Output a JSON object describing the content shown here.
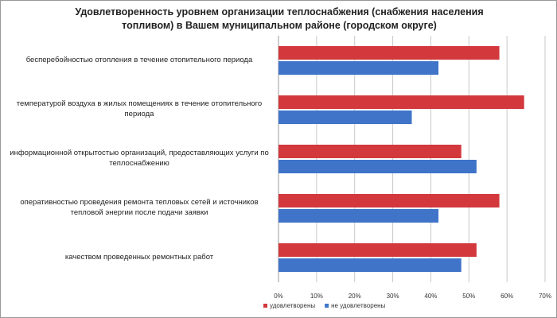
{
  "chart_data": {
    "type": "hbar",
    "title": "Удовлетворенность уровнем организации теплоснабжения (снабжения населения топливом) в Вашем муниципальном районе (городском округе)",
    "categories": [
      "бесперебойностью  отопления в течение отопительного периода",
      "температурой воздуха в жилых помещениях в течение отопительного периода",
      "информационной открытостью организаций, предоставляющих услуги по теплоснабжению",
      "оперативностью проведения ремонта тепловых сетей и источников тепловой энергии после подачи заявки",
      "качеством проведенных ремонтных работ"
    ],
    "series": [
      {
        "name": "удовлетворены",
        "color": "#d2383c",
        "values": [
          58,
          64.5,
          48,
          58,
          52
        ]
      },
      {
        "name": "не удовлетворены",
        "color": "#3f74c8",
        "values": [
          42,
          35,
          52,
          42,
          48
        ]
      }
    ],
    "xlim": [
      0,
      70
    ],
    "xticks": [
      {
        "value": 0,
        "label": "0%"
      },
      {
        "value": 10,
        "label": "10%"
      },
      {
        "value": 20,
        "label": "20%"
      },
      {
        "value": 30,
        "label": "30%"
      },
      {
        "value": 40,
        "label": "40%"
      },
      {
        "value": 50,
        "label": "50%"
      },
      {
        "value": 60,
        "label": "60%"
      },
      {
        "value": 70,
        "label": "70%"
      }
    ],
    "grid": true
  }
}
